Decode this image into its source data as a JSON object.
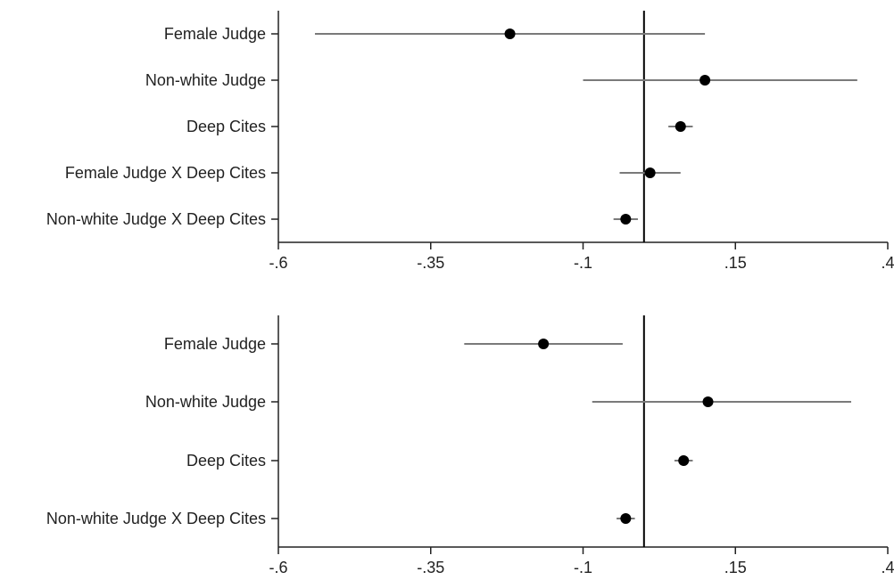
{
  "chart_data": [
    {
      "type": "coefficient_plot",
      "orientation": "horizontal",
      "categories": [
        "Female Judge",
        "Non-white Judge",
        "Deep Cites",
        "Female Judge X Deep Cites",
        "Non-white Judge X Deep Cites"
      ],
      "estimates": [
        -0.22,
        0.1,
        0.06,
        0.01,
        -0.03
      ],
      "ci_low": [
        -0.54,
        -0.1,
        0.04,
        -0.04,
        -0.05
      ],
      "ci_high": [
        0.1,
        0.35,
        0.08,
        0.06,
        -0.01
      ],
      "reference_line": 0,
      "xlim": [
        -0.6,
        0.4
      ],
      "xticks": [
        -0.6,
        -0.35,
        -0.1,
        0.15,
        0.4
      ],
      "xtick_labels": [
        "-.6",
        "-.35",
        "-.1",
        ".15",
        ".4"
      ],
      "grid": false,
      "title": "",
      "xlabel": "",
      "ylabel": ""
    },
    {
      "type": "coefficient_plot",
      "orientation": "horizontal",
      "categories": [
        "Female Judge",
        "Non-white Judge",
        "Deep Cites",
        "Non-white Judge X Deep Cites"
      ],
      "estimates": [
        -0.165,
        0.105,
        0.065,
        -0.03
      ],
      "ci_low": [
        -0.295,
        -0.085,
        0.05,
        -0.045
      ],
      "ci_high": [
        -0.035,
        0.34,
        0.08,
        -0.015
      ],
      "reference_line": 0,
      "xlim": [
        -0.6,
        0.4
      ],
      "xticks": [
        -0.6,
        -0.35,
        -0.1,
        0.15,
        0.4
      ],
      "xtick_labels": [
        "-.6",
        "-.35",
        "-.1",
        ".15",
        ".4"
      ],
      "grid": false,
      "title": "",
      "xlabel": "",
      "ylabel": ""
    }
  ],
  "colors": {
    "axis": "#222222",
    "ci_line": "#7a7a7a",
    "point": "#000000",
    "reference_line": "#000000",
    "text": "#222222"
  }
}
